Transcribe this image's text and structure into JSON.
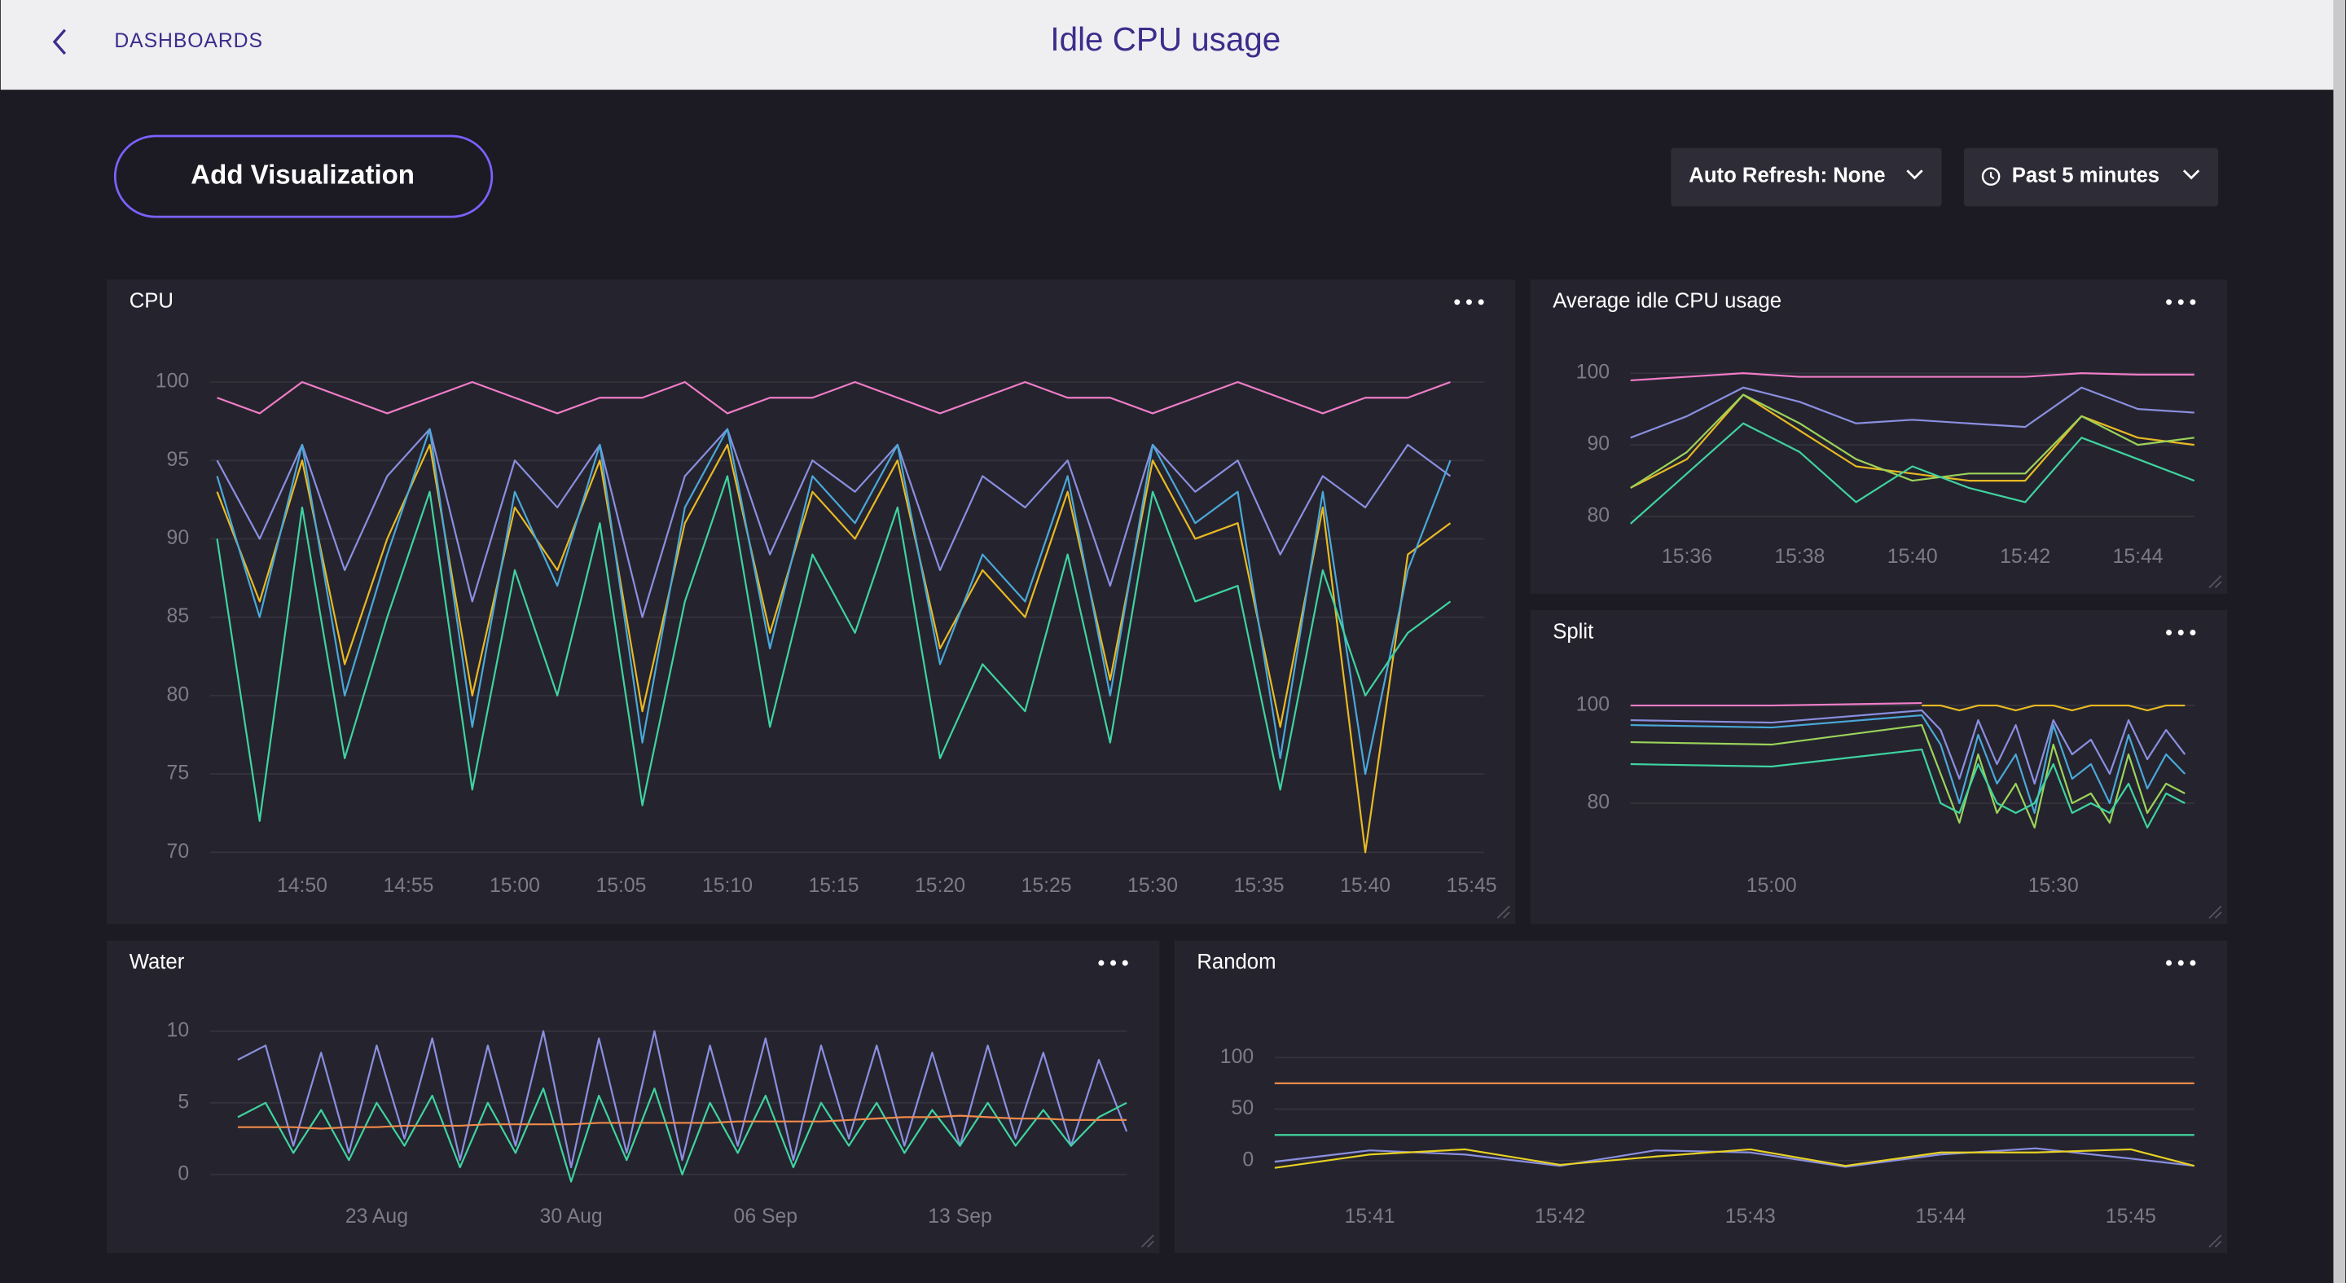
{
  "nav": "DASHBOARDS",
  "title": "Idle CPU usage",
  "toolbar": {
    "add_button": "Add Visualization",
    "refresh": "Auto Refresh: None",
    "range": "Past 5 minutes"
  },
  "panels": [
    {
      "title": "CPU",
      "chart": {
        "type": "line",
        "grid": true,
        "x": [
          "14:46",
          "14:48",
          "14:50",
          "14:52",
          "14:54",
          "14:56",
          "14:58",
          "15:00",
          "15:02",
          "15:04",
          "15:06",
          "15:08",
          "15:10",
          "15:12",
          "15:14",
          "15:16",
          "15:18",
          "15:20",
          "15:22",
          "15:24",
          "15:26",
          "15:28",
          "15:30",
          "15:32",
          "15:34",
          "15:36",
          "15:38",
          "15:40",
          "15:42",
          "15:44"
        ],
        "xlim": [
          "14:45:40",
          "15:45:35"
        ],
        "xticks": [
          "14:50",
          "14:55",
          "15:00",
          "15:05",
          "15:10",
          "15:15",
          "15:20",
          "15:25",
          "15:30",
          "15:35",
          "15:40",
          "15:45"
        ],
        "ylim": [
          70,
          101
        ],
        "yticks": [
          70,
          75,
          80,
          85,
          90,
          95,
          100
        ],
        "series": [
          {
            "color": "#f07cc8",
            "values": [
              99,
              98,
              100,
              99,
              98,
              99,
              100,
              99,
              98,
              99,
              99,
              100,
              98,
              99,
              99,
              100,
              99,
              98,
              99,
              100,
              99,
              99,
              98,
              99,
              100,
              99,
              98,
              99,
              99,
              100
            ]
          },
          {
            "color": "#8a8fe0",
            "values": [
              95,
              90,
              96,
              88,
              94,
              97,
              86,
              95,
              92,
              96,
              85,
              94,
              97,
              89,
              95,
              93,
              96,
              88,
              94,
              92,
              95,
              87,
              96,
              93,
              95,
              89,
              94,
              92,
              96,
              94
            ]
          },
          {
            "color": "#e8b923",
            "values": [
              93,
              86,
              95,
              82,
              90,
              96,
              80,
              92,
              88,
              95,
              79,
              91,
              96,
              84,
              93,
              90,
              95,
              83,
              88,
              85,
              93,
              81,
              95,
              90,
              91,
              78,
              92,
              70,
              89,
              91
            ]
          },
          {
            "color": "#4aa8d8",
            "values": [
              94,
              85,
              96,
              80,
              89,
              97,
              78,
              93,
              87,
              96,
              77,
              92,
              97,
              83,
              94,
              91,
              96,
              82,
              89,
              86,
              94,
              80,
              96,
              91,
              93,
              76,
              93,
              75,
              88,
              95
            ]
          },
          {
            "color": "#3fd3a0",
            "values": [
              90,
              72,
              92,
              76,
              85,
              93,
              74,
              88,
              80,
              91,
              73,
              86,
              94,
              78,
              89,
              84,
              92,
              76,
              82,
              79,
              89,
              77,
              93,
              86,
              87,
              74,
              88,
              80,
              84,
              86
            ]
          }
        ]
      }
    },
    {
      "title": "Average idle CPU usage",
      "chart": {
        "type": "line",
        "grid": true,
        "x": [
          "15:35",
          "15:36",
          "15:37",
          "15:38",
          "15:39",
          "15:40",
          "15:41",
          "15:42",
          "15:43",
          "15:44",
          "15:45"
        ],
        "xlim": [
          "15:35",
          "15:45"
        ],
        "xticks": [
          "15:36",
          "15:38",
          "15:40",
          "15:42",
          "15:44"
        ],
        "ylim": [
          78,
          102
        ],
        "yticks": [
          80,
          90,
          100
        ],
        "series": [
          {
            "color": "#f07cc8",
            "values": [
              99,
              99.5,
              100,
              99.5,
              99.5,
              99.5,
              99.5,
              99.5,
              100,
              99.8,
              99.8
            ]
          },
          {
            "color": "#8a8fe0",
            "values": [
              91,
              94,
              98,
              96,
              93,
              93.5,
              93,
              92.5,
              98,
              95,
              94.5
            ]
          },
          {
            "color": "#e8b923",
            "values": [
              84,
              88,
              97,
              92,
              87,
              86,
              85,
              85,
              94,
              91,
              90
            ]
          },
          {
            "color": "#9bd35a",
            "values": [
              84,
              89,
              97,
              93,
              88,
              85,
              86,
              86,
              94,
              90,
              91
            ]
          },
          {
            "color": "#3fd3a0",
            "values": [
              79,
              86,
              93,
              89,
              82,
              87,
              84,
              82,
              91,
              88,
              85
            ]
          }
        ]
      }
    },
    {
      "title": "Split",
      "chart": {
        "type": "line",
        "grid": true,
        "x": [
          "14:45",
          "15:00",
          "15:16",
          "15:18",
          "15:20",
          "15:22",
          "15:24",
          "15:26",
          "15:28",
          "15:30",
          "15:32",
          "15:34",
          "15:36",
          "15:38",
          "15:40",
          "15:42",
          "15:44"
        ],
        "xlim": [
          "14:45",
          "15:45"
        ],
        "xticks": [
          "15:00",
          "15:30"
        ],
        "ylim": [
          73,
          103
        ],
        "yticks": [
          80,
          100
        ],
        "series": [
          {
            "color": "#f07cc8",
            "values": [
              100,
              100,
              100.5,
              null,
              null,
              null,
              null,
              null,
              null,
              null,
              null,
              null,
              null,
              null,
              null,
              null,
              null
            ]
          },
          {
            "color": "#8a8fe0",
            "values": [
              97,
              96.5,
              99,
              95,
              85,
              97,
              88,
              96,
              84,
              97,
              90,
              93,
              86,
              97,
              89,
              95,
              90
            ]
          },
          {
            "color": "#4aa8d8",
            "values": [
              96,
              95.5,
              98,
              92,
              80,
              94,
              84,
              90,
              78,
              96,
              85,
              88,
              80,
              94,
              83,
              90,
              86
            ]
          },
          {
            "color": "#9bd35a",
            "values": [
              92.5,
              92,
              96,
              86,
              76,
              90,
              78,
              84,
              75,
              92,
              80,
              82,
              76,
              90,
              78,
              84,
              82
            ]
          },
          {
            "color": "#3fd3a0",
            "values": [
              88,
              87.5,
              91,
              80,
              78,
              88,
              80,
              78,
              80,
              88,
              78,
              80,
              78,
              84,
              75,
              82,
              80
            ]
          },
          {
            "color": "#e8b923",
            "values": [
              null,
              null,
              100,
              100,
              99,
              100,
              100,
              99,
              100,
              100,
              99,
              100,
              100,
              100,
              99,
              100,
              100
            ]
          }
        ]
      }
    },
    {
      "title": "Water",
      "chart": {
        "type": "line",
        "grid": true,
        "x": [
          "18 Aug",
          "19 Aug",
          "20 Aug",
          "21 Aug",
          "22 Aug",
          "23 Aug",
          "24 Aug",
          "25 Aug",
          "26 Aug",
          "27 Aug",
          "28 Aug",
          "29 Aug",
          "30 Aug",
          "31 Aug",
          "01 Sep",
          "02 Sep",
          "03 Sep",
          "04 Sep",
          "05 Sep",
          "06 Sep",
          "07 Sep",
          "08 Sep",
          "09 Sep",
          "10 Sep",
          "11 Sep",
          "12 Sep",
          "13 Sep",
          "14 Sep",
          "15 Sep",
          "16 Sep",
          "17 Sep",
          "18 Sep",
          "19 Sep"
        ],
        "xlim": [
          "17 Aug",
          "19 Sep"
        ],
        "xticks": [
          "23 Aug",
          "30 Aug",
          "06 Sep",
          "13 Sep"
        ],
        "ylim": [
          -1,
          11
        ],
        "yticks": [
          0,
          5,
          10
        ],
        "series": [
          {
            "color": "#8a8fe0",
            "values": [
              8,
              9,
              2,
              8.5,
              1.5,
              9,
              2.5,
              9.5,
              1,
              9,
              2,
              10,
              0.5,
              9.5,
              1.5,
              10,
              1,
              9,
              2,
              9.5,
              1,
              9,
              2.5,
              9,
              2,
              8.5,
              2,
              9,
              2.5,
              8.5,
              2,
              8,
              3
            ]
          },
          {
            "color": "#3fd3a0",
            "values": [
              4,
              5,
              1.5,
              4.5,
              1,
              5,
              2,
              5.5,
              0.5,
              5,
              1.5,
              6,
              -0.5,
              5.5,
              1,
              6,
              0,
              5,
              1.5,
              5.5,
              0.5,
              5,
              2,
              5,
              1.5,
              4.5,
              2,
              5,
              2,
              4.5,
              2,
              4,
              5
            ]
          },
          {
            "color": "#f08a4b",
            "values": [
              3.3,
              3.3,
              3.3,
              3.2,
              3.3,
              3.3,
              3.4,
              3.4,
              3.4,
              3.5,
              3.5,
              3.5,
              3.5,
              3.6,
              3.6,
              3.6,
              3.6,
              3.6,
              3.7,
              3.7,
              3.7,
              3.7,
              3.8,
              3.9,
              4,
              4,
              4.1,
              4,
              3.9,
              3.9,
              3.8,
              3.8,
              3.8
            ]
          }
        ]
      }
    },
    {
      "title": "Random",
      "chart": {
        "type": "line",
        "grid": true,
        "x": [
          "15:40:30",
          "15:41:00",
          "15:41:30",
          "15:42:00",
          "15:42:30",
          "15:43:00",
          "15:43:30",
          "15:44:00",
          "15:44:30",
          "15:45:00",
          "15:45:20"
        ],
        "xlim": [
          "15:40:30",
          "15:45:20"
        ],
        "xticks": [
          "15:41",
          "15:42",
          "15:43",
          "15:44",
          "15:45"
        ],
        "ylim": [
          -20,
          125
        ],
        "yticks": [
          0,
          50,
          100
        ],
        "series": [
          {
            "color": "#f08a4b",
            "values": [
              75,
              75,
              75,
              75,
              75,
              75,
              75,
              75,
              75,
              75,
              75
            ]
          },
          {
            "color": "#3fd3a0",
            "values": [
              25,
              25,
              25,
              25,
              25,
              25,
              25,
              25,
              25,
              25,
              25
            ]
          },
          {
            "color": "#8a8fe0",
            "values": [
              -1,
              10,
              6,
              -5,
              10,
              8,
              -6,
              6,
              12,
              2,
              -5
            ]
          },
          {
            "color": "#e8d123",
            "values": [
              -7,
              6,
              11,
              -4,
              4,
              11,
              -5,
              8,
              8,
              11,
              -5
            ]
          }
        ]
      }
    }
  ]
}
